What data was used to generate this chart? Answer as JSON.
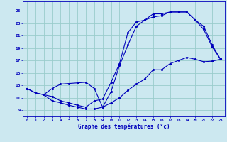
{
  "xlabel": "Graphe des températures (°c)",
  "background_color": "#cce8f0",
  "line_color": "#0000bb",
  "grid_color": "#99cccc",
  "x_ticks": [
    0,
    1,
    2,
    3,
    4,
    5,
    6,
    7,
    8,
    9,
    10,
    11,
    12,
    13,
    14,
    15,
    16,
    17,
    18,
    19,
    20,
    21,
    22,
    23
  ],
  "y_ticks": [
    9,
    11,
    13,
    15,
    17,
    19,
    21,
    23,
    25
  ],
  "ylim": [
    8.0,
    26.5
  ],
  "xlim": [
    -0.5,
    23.5
  ],
  "line1_x": [
    0,
    1,
    2,
    3,
    4,
    5,
    6,
    7,
    8,
    9,
    10,
    11,
    12,
    13,
    14,
    15,
    16,
    17,
    18,
    19,
    20,
    21,
    22,
    23
  ],
  "line1_y": [
    12.5,
    11.8,
    11.5,
    12.5,
    13.2,
    13.3,
    13.4,
    13.5,
    12.5,
    9.5,
    10.2,
    11.0,
    12.2,
    13.2,
    14.0,
    15.5,
    15.5,
    16.5,
    17.0,
    17.5,
    17.2,
    16.8,
    16.9,
    17.2
  ],
  "line2_x": [
    0,
    1,
    2,
    3,
    4,
    5,
    6,
    7,
    8,
    9,
    10,
    11,
    12,
    13,
    14,
    15,
    16,
    17,
    18,
    19,
    20,
    21,
    22,
    23
  ],
  "line2_y": [
    12.5,
    11.8,
    11.5,
    10.5,
    10.2,
    9.8,
    9.5,
    9.2,
    9.2,
    9.5,
    12.0,
    16.2,
    19.5,
    22.5,
    23.5,
    24.5,
    24.5,
    24.8,
    24.8,
    24.8,
    23.5,
    22.5,
    19.5,
    17.2
  ],
  "line3_x": [
    2,
    3,
    4,
    5,
    6,
    7,
    8,
    9,
    10,
    11,
    12,
    13,
    14,
    15,
    16,
    17,
    18,
    19,
    20,
    21,
    22,
    23
  ],
  "line3_y": [
    11.5,
    11.2,
    10.5,
    10.2,
    9.8,
    9.5,
    10.5,
    10.8,
    13.5,
    16.5,
    21.5,
    23.2,
    23.5,
    24.0,
    24.2,
    24.8,
    24.8,
    24.8,
    23.5,
    22.0,
    19.2,
    17.2
  ]
}
